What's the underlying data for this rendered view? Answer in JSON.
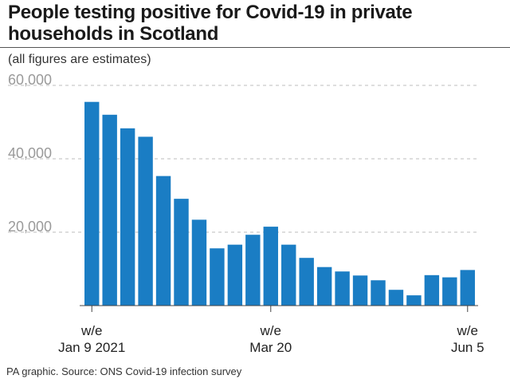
{
  "chart_data": {
    "type": "bar",
    "title": "People testing positive for Covid-19 in private households in Scotland",
    "subtitle": "(all figures are estimates)",
    "source": "PA graphic. Source: ONS Covid-19 infection survey",
    "xlabel": "",
    "ylabel": "",
    "ylim": [
      0,
      60000
    ],
    "yticks": [
      {
        "value": 20000,
        "label": "20,000"
      },
      {
        "value": 40000,
        "label": "40,000"
      },
      {
        "value": 60000,
        "label": "60,000"
      }
    ],
    "grid": true,
    "color": "#1a7dc4",
    "values": [
      55500,
      52000,
      48300,
      46000,
      35300,
      29100,
      23400,
      15600,
      16600,
      19300,
      21500,
      16600,
      13000,
      10500,
      9300,
      8200,
      6900,
      4300,
      2800,
      8300,
      7700,
      9700
    ],
    "xticks": [
      {
        "index": 0,
        "line1": "w/e",
        "line2": "Jan 9 2021"
      },
      {
        "index": 10,
        "line1": "w/e",
        "line2": "Mar 20"
      },
      {
        "index": 21,
        "line1": "w/e",
        "line2": "Jun 5"
      }
    ]
  }
}
